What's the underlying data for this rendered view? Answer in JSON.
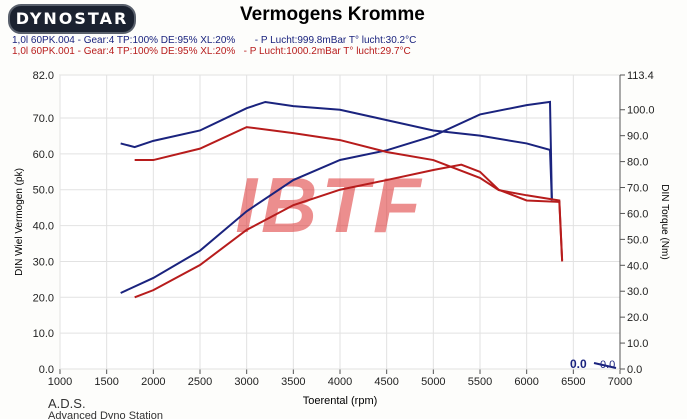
{
  "header": {
    "logo": "DYNOSTAR",
    "title": "Vermogens Kromme",
    "runs": [
      {
        "text": "1,0l 60PK.004 - Gear:4 TP:100% DE:95% XL:20%       - P Lucht:999.8mBar T° lucht:30.2°C",
        "color": "#1a237e"
      },
      {
        "text": "1,0l 60PK.001 - Gear:4 TP:100% DE:95% XL:20%   - P Lucht:1000.2mBar T° lucht:29.7°C",
        "color": "#b71c1c"
      }
    ]
  },
  "footer": {
    "brand": "A.D.S.",
    "brand_sub": "Advanced Dyno Station"
  },
  "watermark": "IBTF",
  "chart_data": {
    "type": "line",
    "title": "Vermogens Kromme",
    "xlabel": "Toerental (rpm)",
    "ylabel": "DIN Wiel Vermogen (pk)",
    "y2label": "DIN Torque (Nm)",
    "xlim": [
      1000,
      7000
    ],
    "ylim": [
      0,
      82
    ],
    "y2lim": [
      0,
      113.4
    ],
    "xticks": [
      1000,
      1500,
      2000,
      2500,
      3000,
      3500,
      4000,
      4500,
      5000,
      5500,
      6000,
      6500,
      7000
    ],
    "yticks": [
      "0.0",
      "10.0",
      "20.0",
      "30.0",
      "40.0",
      "50.0",
      "60.0",
      "70.0",
      "82.0"
    ],
    "y2ticks": [
      "0.0",
      "10.0",
      "20.0",
      "30.0",
      "40.0",
      "50.0",
      "60.0",
      "70.0",
      "80.0",
      "90.0",
      "100.0",
      "113.4"
    ],
    "cursor_readout": [
      "0.0",
      "0.0"
    ],
    "series": [
      {
        "name": "60PK.004 Vermogen",
        "axis": "left",
        "color": "#1a237e",
        "x": [
          1650,
          2000,
          2500,
          3000,
          3500,
          4000,
          4500,
          5000,
          5500,
          6000,
          6250,
          6270
        ],
        "y": [
          21.2,
          25.4,
          33,
          44,
          52.7,
          58.3,
          61,
          65,
          71,
          73.6,
          74.5,
          47
        ]
      },
      {
        "name": "60PK.004 Torque",
        "axis": "right",
        "color": "#1a237e",
        "x": [
          1650,
          1800,
          2000,
          2500,
          3000,
          3200,
          3500,
          4000,
          4500,
          5000,
          5500,
          6000,
          6250,
          6270
        ],
        "y": [
          87,
          85.6,
          88,
          92,
          100.6,
          103,
          101.4,
          100,
          96,
          92,
          90,
          87,
          84.5,
          65
        ]
      },
      {
        "name": "60PK.001 Vermogen",
        "axis": "left",
        "color": "#b71c1c",
        "x": [
          1800,
          2000,
          2500,
          3000,
          3500,
          4000,
          4500,
          5000,
          5300,
          5500,
          5700,
          6000,
          6350,
          6380
        ],
        "y": [
          20,
          22,
          29,
          38.8,
          45.7,
          50,
          52.7,
          55.5,
          57,
          55,
          50,
          47,
          46.6,
          30
        ]
      },
      {
        "name": "60PK.001 Torque",
        "axis": "right",
        "color": "#b71c1c",
        "x": [
          1800,
          2000,
          2500,
          3000,
          3500,
          4000,
          4500,
          5000,
          5500,
          5700,
          6000,
          6350,
          6380
        ],
        "y": [
          80.6,
          80.6,
          85,
          93.3,
          91,
          88.3,
          83.7,
          80.6,
          73.7,
          69,
          67,
          65,
          42
        ]
      }
    ]
  }
}
